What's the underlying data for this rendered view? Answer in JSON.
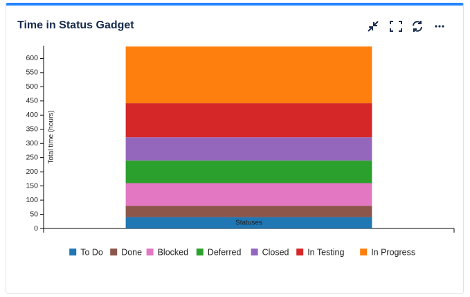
{
  "header": {
    "title": "Time in Status Gadget"
  },
  "chart_data": {
    "type": "stacked-bar",
    "y_label": "Total time (hours)",
    "categories": [
      "Statuses"
    ],
    "series": [
      {
        "name": "To Do",
        "color": "#1f77b4",
        "values": [
          40
        ]
      },
      {
        "name": "Done",
        "color": "#8c564b",
        "values": [
          40
        ]
      },
      {
        "name": "Blocked",
        "color": "#e377c2",
        "values": [
          80
        ]
      },
      {
        "name": "Deferred",
        "color": "#2ca02c",
        "values": [
          80
        ]
      },
      {
        "name": "Closed",
        "color": "#9467bd",
        "values": [
          82
        ]
      },
      {
        "name": "In Testing",
        "color": "#d62728",
        "values": [
          120
        ]
      },
      {
        "name": "In Progress",
        "color": "#ff7f0e",
        "values": [
          200
        ]
      }
    ],
    "ylim": [
      0,
      645
    ],
    "yticks": [
      0,
      50,
      100,
      150,
      200,
      250,
      300,
      350,
      400,
      450,
      500,
      550,
      600
    ]
  }
}
